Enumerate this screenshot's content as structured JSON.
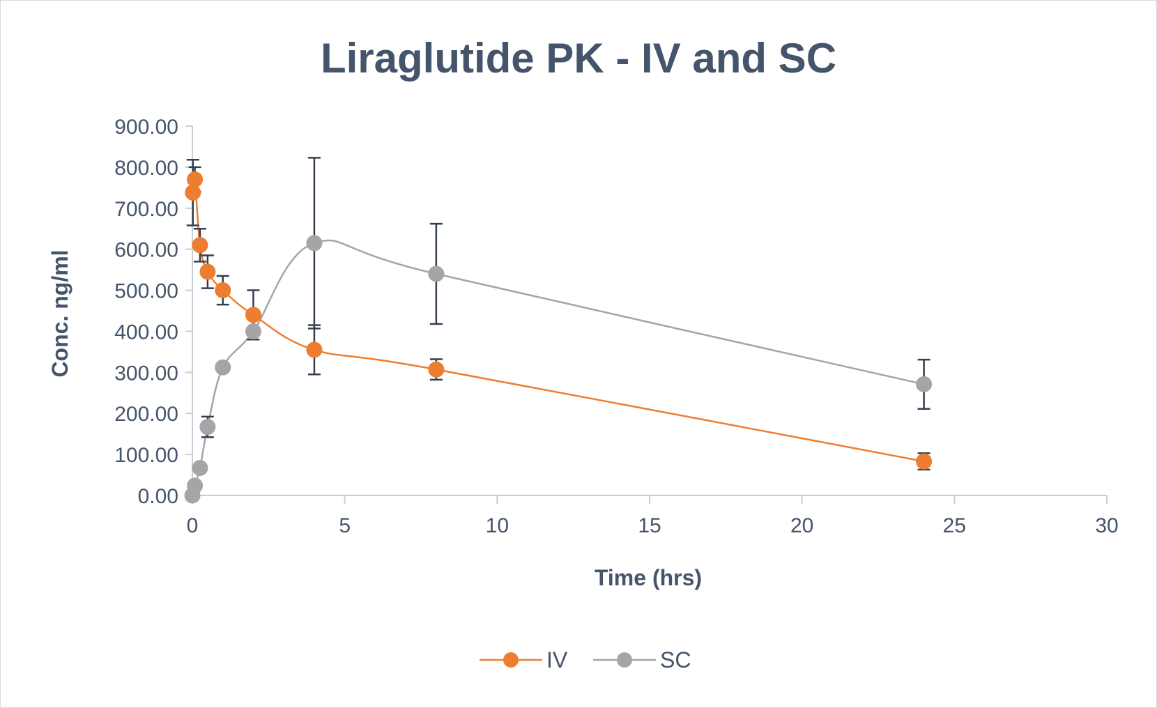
{
  "chart_data": {
    "type": "scatter",
    "title": "Liraglutide PK - IV and SC",
    "xlabel": "Time (hrs)",
    "ylabel": "Conc. ng/ml",
    "xlim": [
      0,
      30
    ],
    "ylim": [
      0,
      900
    ],
    "x_ticks": [
      "0",
      "5",
      "10",
      "15",
      "20",
      "25",
      "30"
    ],
    "y_ticks": [
      "0.00",
      "100.00",
      "200.00",
      "300.00",
      "400.00",
      "500.00",
      "600.00",
      "700.00",
      "800.00",
      "900.00"
    ],
    "x_tick_values": [
      0,
      5,
      10,
      15,
      20,
      25,
      30
    ],
    "y_tick_values": [
      0,
      100,
      200,
      300,
      400,
      500,
      600,
      700,
      800,
      900
    ],
    "grid": false,
    "legend_position": "bottom",
    "smoothed_lines": true,
    "series": [
      {
        "name": "IV",
        "color": "#ed7d31",
        "x": [
          0.017,
          0.083,
          0.25,
          0.5,
          1,
          2,
          4,
          8,
          24
        ],
        "y": [
          738,
          770,
          610,
          545,
          500,
          440,
          355,
          307,
          83
        ],
        "error": [
          80,
          30,
          40,
          40,
          35,
          60,
          60,
          25,
          20
        ]
      },
      {
        "name": "SC",
        "color": "#a5a5a5",
        "x": [
          0,
          0.083,
          0.25,
          0.5,
          1,
          2,
          4,
          8,
          24
        ],
        "y": [
          0,
          24,
          67,
          167,
          312,
          400,
          615,
          540,
          271
        ],
        "error": [
          0,
          0,
          0,
          25,
          0,
          0,
          208,
          122,
          60
        ]
      }
    ]
  },
  "colors": {
    "text": "#44546a",
    "axis": "#c8ced8",
    "error_bar": "#333f50"
  }
}
